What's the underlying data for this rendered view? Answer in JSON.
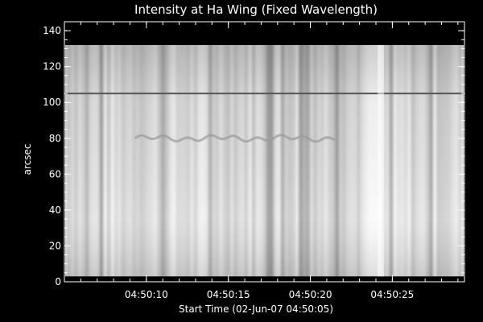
{
  "chart_data": {
    "type": "heatmap",
    "title": "Intensity at Ha Wing (Fixed Wavelength)",
    "xlabel": "Start Time (02-Jun-07 04:50:05)",
    "ylabel": "arcsec",
    "x_unit": "seconds since start time",
    "xlim": [
      0.0,
      24.4
    ],
    "ylim": [
      0,
      145
    ],
    "x_ticks": [
      {
        "value": 5,
        "label": "04:50:10"
      },
      {
        "value": 10,
        "label": "04:50:15"
      },
      {
        "value": 15,
        "label": "04:50:20"
      },
      {
        "value": 20,
        "label": "04:50:25"
      }
    ],
    "y_ticks": [
      0,
      20,
      40,
      60,
      80,
      100,
      120,
      140
    ],
    "data_y_extent": [
      3,
      132
    ],
    "colormap": "grayscale",
    "features": [
      {
        "name": "dark horizontal line",
        "y": 105,
        "x_range": [
          0.0,
          24.4
        ]
      },
      {
        "name": "faint dark wavy feature",
        "y": 80,
        "x_range": [
          4.3,
          16.5
        ]
      },
      {
        "name": "bright vertical band",
        "x": 19.3
      }
    ]
  }
}
